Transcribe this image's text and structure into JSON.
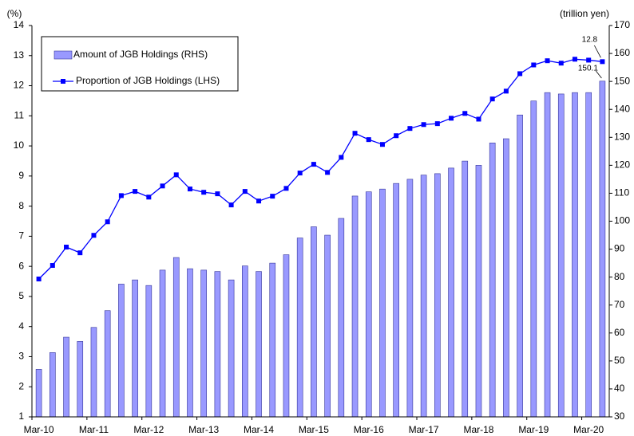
{
  "chart_data": {
    "type": "bar",
    "y_label": "(%)",
    "y2_label": "(trillion yen)",
    "categories": [
      "Mar-10",
      null,
      null,
      null,
      "Mar-11",
      null,
      null,
      null,
      "Mar-12",
      null,
      null,
      null,
      "Mar-13",
      null,
      null,
      null,
      "Mar-14",
      null,
      null,
      null,
      "Mar-15",
      null,
      null,
      null,
      "Mar-16",
      null,
      null,
      null,
      "Mar-17",
      null,
      null,
      null,
      "Mar-18",
      null,
      null,
      null,
      "Mar-19",
      null,
      null,
      null,
      "Mar-20",
      null
    ],
    "series": [
      {
        "name": "Amount of JGB Holdings (RHS)",
        "type": "bar",
        "axis": "y2",
        "color": "#9999ff",
        "values": [
          47,
          53,
          58.5,
          57,
          62,
          68,
          77.5,
          79,
          77,
          82.5,
          87,
          83,
          82.5,
          82,
          79,
          84,
          82,
          85,
          88,
          94,
          98,
          95,
          101,
          109,
          110.5,
          111.5,
          113.5,
          115,
          116.5,
          117,
          119,
          121.5,
          120,
          128,
          129.5,
          138,
          143,
          146,
          145.5,
          146,
          146,
          150.1
        ]
      },
      {
        "name": "Proportion of JGB Holdings (LHS)",
        "type": "line",
        "axis": "y",
        "color": "#0000ff",
        "values": [
          5.58,
          6.03,
          6.64,
          6.45,
          7.03,
          7.48,
          8.35,
          8.49,
          8.3,
          8.67,
          9.04,
          8.57,
          8.46,
          8.41,
          8.04,
          8.49,
          8.17,
          8.33,
          8.59,
          9.1,
          9.39,
          9.12,
          9.62,
          10.42,
          10.21,
          10.05,
          10.34,
          10.58,
          10.71,
          10.74,
          10.92,
          11.08,
          10.89,
          11.56,
          11.82,
          12.4,
          12.69,
          12.83,
          12.75,
          12.88,
          12.85,
          12.8
        ]
      }
    ],
    "ylim": [
      1,
      14
    ],
    "yticks": [
      1,
      2,
      3,
      4,
      5,
      6,
      7,
      8,
      9,
      10,
      11,
      12,
      13,
      14
    ],
    "y2lim": [
      30,
      170
    ],
    "y2ticks": [
      30,
      40,
      50,
      60,
      70,
      80,
      90,
      100,
      110,
      120,
      130,
      140,
      150,
      160,
      170
    ],
    "legend": "top-left",
    "grid": false
  }
}
